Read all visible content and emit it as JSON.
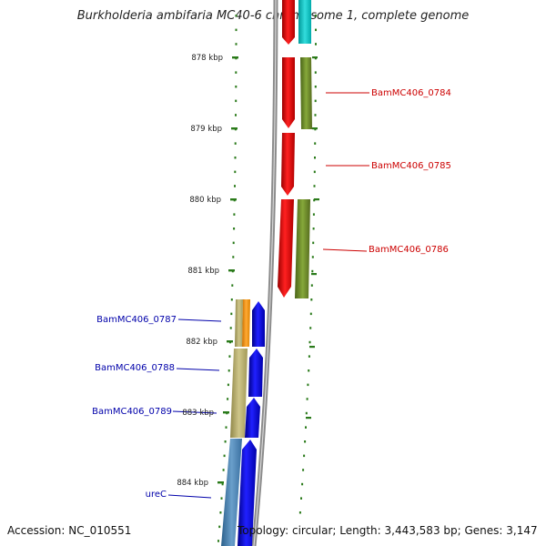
{
  "title": "Burkholderia ambifaria MC40-6 chromosome 1, complete genome",
  "footer": {
    "accession": "Accession: NC_010551",
    "topology": "Topology: circular; Length: 3,443,583 bp; Genes: 3,147"
  },
  "scale": {
    "unit": "kbp",
    "ticks": [
      {
        "label": "878 kbp",
        "kbp": 878
      },
      {
        "label": "879 kbp",
        "kbp": 879
      },
      {
        "label": "880 kbp",
        "kbp": 880
      },
      {
        "label": "881 kbp",
        "kbp": 881
      },
      {
        "label": "882 kbp",
        "kbp": 882
      },
      {
        "label": "883 kbp",
        "kbp": 883
      },
      {
        "label": "884 kbp",
        "kbp": 884
      }
    ]
  },
  "genes": [
    {
      "label": "BamMC406_0784",
      "strand": "minus",
      "color": "#cc0000"
    },
    {
      "label": "BamMC406_0785",
      "strand": "minus",
      "color": "#cc0000"
    },
    {
      "label": "BamMC406_0786",
      "strand": "minus",
      "color": "#cc0000"
    },
    {
      "label": "BamMC406_0787",
      "strand": "plus",
      "color": "#0000aa"
    },
    {
      "label": "BamMC406_0788",
      "strand": "plus",
      "color": "#0000aa"
    },
    {
      "label": "BamMC406_0789",
      "strand": "plus",
      "color": "#0000aa"
    },
    {
      "label": "ureC",
      "strand": "plus",
      "color": "#0000aa"
    }
  ],
  "colors": {
    "backbone": "#8a8a8a",
    "tick": "#2a7a1a",
    "minus_cds": "#ff0000",
    "plus_cds": "#0000ff",
    "cog_olive": "#6b8e23",
    "cog_cyan": "#00cccc",
    "cog_khaki": "#b8ad6a",
    "cog_orange": "#ff9900",
    "cog_steelblue": "#4682b4"
  }
}
